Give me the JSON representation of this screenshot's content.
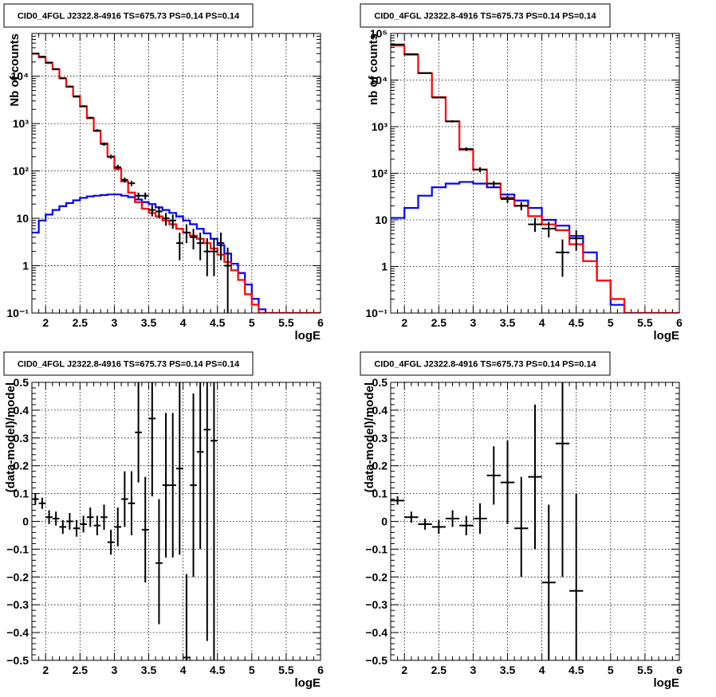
{
  "colors": {
    "model": "#ff0000",
    "component": "#0000ff",
    "data": "#000000"
  },
  "chart_data": [
    {
      "type": "line",
      "title": "CID0_4FGL J2322.8-4916 TS=675.73 PS=0.14 PS=0.14",
      "xlabel": "logE",
      "ylabel": "Nb of counts",
      "xlim": [
        1.8,
        6.0
      ],
      "ylim": [
        0.1,
        80000
      ],
      "yscale": "log",
      "grid": true,
      "xticks": [
        2,
        2.5,
        3,
        3.5,
        4,
        4.5,
        5,
        5.5,
        6
      ],
      "xtick_labels": [
        "2",
        "2.5",
        "3",
        "3.5",
        "4",
        "4.5",
        "5",
        "5.5",
        "6"
      ],
      "yticks": [
        0.1,
        1,
        10,
        100,
        1000,
        10000
      ],
      "ytick_labels": [
        "10⁻¹",
        "1",
        "10",
        "10²",
        "10³",
        "10⁴"
      ],
      "bin_edges": [
        1.8,
        1.9,
        2.0,
        2.1,
        2.2,
        2.3,
        2.4,
        2.5,
        2.6,
        2.7,
        2.8,
        2.9,
        3.0,
        3.1,
        3.2,
        3.3,
        3.4,
        3.5,
        3.6,
        3.7,
        3.8,
        3.9,
        4.0,
        4.1,
        4.2,
        4.3,
        4.4,
        4.5,
        4.6,
        4.7,
        4.8,
        4.9,
        5.0,
        5.1,
        5.2,
        5.3,
        5.4,
        5.5,
        5.6,
        5.7,
        5.8,
        5.9,
        6.0
      ],
      "series": [
        {
          "values": [
            30000,
            25000,
            19000,
            14000,
            9000,
            6000,
            3800,
            2300,
            1300,
            700,
            380,
            200,
            110,
            60,
            35,
            22,
            16,
            13,
            11,
            9,
            7.5,
            6,
            5,
            4.3,
            3.7,
            3,
            2.3,
            1.7,
            1.2,
            0.8,
            0.5,
            0.25,
            0.15,
            0.1,
            0.1,
            0.1,
            0.1,
            0.1,
            0.1,
            0.1,
            0.1,
            0.1
          ]
        },
        {
          "values": [
            5,
            9,
            12,
            15,
            18,
            21,
            24,
            27,
            29,
            30,
            31,
            32,
            32,
            30,
            28,
            25,
            22,
            20,
            17,
            15,
            13,
            11,
            9,
            7.5,
            6,
            4.8,
            3.7,
            2.7,
            1.8,
            1.1,
            0.7,
            0.4,
            0.2,
            0.12,
            0.1,
            0.1,
            0.1,
            0.1,
            0.1,
            0.1,
            0.1,
            0.1
          ]
        }
      ],
      "points": [
        {
          "x": 1.85,
          "y": 30000,
          "ylo": 29500,
          "yhi": 30500
        },
        {
          "x": 1.95,
          "y": 26000,
          "ylo": 25500,
          "yhi": 26500
        },
        {
          "x": 2.05,
          "y": 19500,
          "ylo": 19000,
          "yhi": 20000
        },
        {
          "x": 2.15,
          "y": 14200,
          "ylo": 13800,
          "yhi": 14600
        },
        {
          "x": 2.25,
          "y": 9100,
          "ylo": 8800,
          "yhi": 9400
        },
        {
          "x": 2.35,
          "y": 6050,
          "ylo": 5800,
          "yhi": 6300
        },
        {
          "x": 2.45,
          "y": 3700,
          "ylo": 3550,
          "yhi": 3850
        },
        {
          "x": 2.55,
          "y": 2330,
          "ylo": 2230,
          "yhi": 2430
        },
        {
          "x": 2.65,
          "y": 1330,
          "ylo": 1260,
          "yhi": 1400
        },
        {
          "x": 2.75,
          "y": 715,
          "ylo": 670,
          "yhi": 760
        },
        {
          "x": 2.85,
          "y": 370,
          "ylo": 340,
          "yhi": 400
        },
        {
          "x": 2.95,
          "y": 200,
          "ylo": 180,
          "yhi": 220
        },
        {
          "x": 3.05,
          "y": 120,
          "ylo": 105,
          "yhi": 135
        },
        {
          "x": 3.15,
          "y": 65,
          "ylo": 57,
          "yhi": 73
        },
        {
          "x": 3.25,
          "y": 55,
          "ylo": 48,
          "yhi": 62
        },
        {
          "x": 3.35,
          "y": 30,
          "ylo": 25,
          "yhi": 35
        },
        {
          "x": 3.45,
          "y": 30,
          "ylo": 25,
          "yhi": 35
        },
        {
          "x": 3.55,
          "y": 15,
          "ylo": 11,
          "yhi": 19
        },
        {
          "x": 3.65,
          "y": 14,
          "ylo": 10,
          "yhi": 18
        },
        {
          "x": 3.75,
          "y": 10,
          "ylo": 7,
          "yhi": 13
        },
        {
          "x": 3.85,
          "y": 9,
          "ylo": 6,
          "yhi": 12
        },
        {
          "x": 3.95,
          "y": 3,
          "ylo": 1.3,
          "yhi": 5
        },
        {
          "x": 4.05,
          "y": 5,
          "ylo": 3,
          "yhi": 7.5
        },
        {
          "x": 4.15,
          "y": 4,
          "ylo": 2.2,
          "yhi": 6
        },
        {
          "x": 4.25,
          "y": 3,
          "ylo": 1.3,
          "yhi": 5
        },
        {
          "x": 4.35,
          "y": 2,
          "ylo": 0.6,
          "yhi": 3.8
        },
        {
          "x": 4.45,
          "y": 2,
          "ylo": 0.6,
          "yhi": 3.8
        },
        {
          "x": 4.55,
          "y": 3,
          "ylo": 1.3,
          "yhi": 5
        },
        {
          "x": 4.65,
          "y": 1,
          "ylo": 0.1,
          "yhi": 2.4
        }
      ]
    },
    {
      "type": "line",
      "title": "CID0_4FGL J2322.8-4916 TS=675.73 PS=0.14 PS=0.14",
      "xlabel": "logE",
      "ylabel": "nb of counts",
      "xlim": [
        1.8,
        6.0
      ],
      "ylim": [
        0.1,
        100000
      ],
      "yscale": "log",
      "grid": true,
      "xticks": [
        2,
        2.5,
        3,
        3.5,
        4,
        4.5,
        5,
        5.5,
        6
      ],
      "xtick_labels": [
        "2",
        "2.5",
        "3",
        "3.5",
        "4",
        "4.5",
        "5",
        "5.5",
        "6"
      ],
      "yticks": [
        0.1,
        1,
        10,
        100,
        1000,
        10000,
        100000
      ],
      "ytick_labels": [
        "10⁻¹",
        "1",
        "10",
        "10²",
        "10³",
        "10⁴",
        "10⁵"
      ],
      "bin_edges": [
        1.8,
        2.0,
        2.2,
        2.4,
        2.6,
        2.8,
        3.0,
        3.2,
        3.4,
        3.6,
        3.8,
        4.0,
        4.2,
        4.4,
        4.6,
        4.8,
        5.0,
        5.2,
        5.4,
        5.6,
        5.8,
        6.0
      ],
      "series": [
        {
          "values": [
            55000,
            35000,
            14000,
            4300,
            1300,
            320,
            120,
            60,
            30,
            20,
            12,
            8,
            6,
            3,
            1.3,
            0.5,
            0.2,
            0.1,
            0.1,
            0.1,
            0.1
          ]
        },
        {
          "values": [
            11,
            18,
            33,
            50,
            60,
            65,
            60,
            50,
            35,
            26,
            18,
            10,
            7.5,
            4.5,
            2,
            0.5,
            0.15,
            0.1,
            0.1,
            0.1,
            0.1
          ]
        }
      ],
      "points": [
        {
          "x": 1.9,
          "y": 58000,
          "ylo": 57000,
          "yhi": 59000
        },
        {
          "x": 2.1,
          "y": 36000,
          "ylo": 35500,
          "yhi": 36500
        },
        {
          "x": 2.3,
          "y": 14200,
          "ylo": 13900,
          "yhi": 14500
        },
        {
          "x": 2.5,
          "y": 4200,
          "ylo": 4050,
          "yhi": 4350
        },
        {
          "x": 2.7,
          "y": 1300,
          "ylo": 1230,
          "yhi": 1370
        },
        {
          "x": 2.9,
          "y": 330,
          "ylo": 300,
          "yhi": 360
        },
        {
          "x": 3.1,
          "y": 120,
          "ylo": 105,
          "yhi": 135
        },
        {
          "x": 3.3,
          "y": 60,
          "ylo": 52,
          "yhi": 68
        },
        {
          "x": 3.5,
          "y": 28,
          "ylo": 23,
          "yhi": 33
        },
        {
          "x": 3.7,
          "y": 20,
          "ylo": 16,
          "yhi": 24
        },
        {
          "x": 3.9,
          "y": 8,
          "ylo": 5.5,
          "yhi": 11
        },
        {
          "x": 4.1,
          "y": 6.5,
          "ylo": 4.2,
          "yhi": 9
        },
        {
          "x": 4.3,
          "y": 2,
          "ylo": 0.6,
          "yhi": 3.8
        },
        {
          "x": 4.5,
          "y": 4,
          "ylo": 2.2,
          "yhi": 6
        }
      ]
    },
    {
      "type": "scatter",
      "title": "CID0_4FGL J2322.8-4916 TS=675.73 PS=0.14 PS=0.14",
      "xlabel": "logE",
      "ylabel": "(data-model)/model",
      "xlim": [
        1.8,
        6.0
      ],
      "ylim": [
        -0.5,
        0.5
      ],
      "grid": true,
      "xticks": [
        2,
        2.5,
        3,
        3.5,
        4,
        4.5,
        5,
        5.5,
        6
      ],
      "xtick_labels": [
        "2",
        "2.5",
        "3",
        "3.5",
        "4",
        "4.5",
        "5",
        "5.5",
        "6"
      ],
      "yticks": [
        -0.5,
        -0.4,
        -0.3,
        -0.2,
        -0.1,
        0,
        0.1,
        0.2,
        0.3,
        0.4,
        0.5
      ],
      "ytick_labels": [
        "−0.5",
        "−0.4",
        "−0.3",
        "−0.2",
        "−0.1",
        "0",
        "0.1",
        "0.2",
        "0.3",
        "0.4",
        "0.5"
      ],
      "xerr": 0.05,
      "points": [
        {
          "x": 1.85,
          "y": 0.08,
          "ylo": 0.06,
          "yhi": 0.1
        },
        {
          "x": 1.95,
          "y": 0.065,
          "ylo": 0.045,
          "yhi": 0.085
        },
        {
          "x": 2.05,
          "y": 0.015,
          "ylo": -0.01,
          "yhi": 0.04
        },
        {
          "x": 2.15,
          "y": 0.01,
          "ylo": -0.015,
          "yhi": 0.035
        },
        {
          "x": 2.25,
          "y": -0.02,
          "ylo": -0.045,
          "yhi": 0.005
        },
        {
          "x": 2.35,
          "y": 0.0,
          "ylo": -0.03,
          "yhi": 0.03
        },
        {
          "x": 2.45,
          "y": -0.025,
          "ylo": -0.055,
          "yhi": 0.005
        },
        {
          "x": 2.55,
          "y": -0.01,
          "ylo": -0.04,
          "yhi": 0.02
        },
        {
          "x": 2.65,
          "y": 0.015,
          "ylo": -0.02,
          "yhi": 0.05
        },
        {
          "x": 2.75,
          "y": -0.015,
          "ylo": -0.05,
          "yhi": 0.02
        },
        {
          "x": 2.85,
          "y": 0.015,
          "ylo": -0.03,
          "yhi": 0.06
        },
        {
          "x": 2.95,
          "y": -0.075,
          "ylo": -0.12,
          "yhi": -0.03
        },
        {
          "x": 3.05,
          "y": -0.02,
          "ylo": -0.09,
          "yhi": 0.05
        },
        {
          "x": 3.15,
          "y": 0.08,
          "ylo": -0.02,
          "yhi": 0.18
        },
        {
          "x": 3.25,
          "y": 0.065,
          "ylo": -0.05,
          "yhi": 0.18
        },
        {
          "x": 3.35,
          "y": 0.32,
          "ylo": 0.14,
          "yhi": 0.5
        },
        {
          "x": 3.45,
          "y": -0.03,
          "ylo": -0.22,
          "yhi": 0.16
        },
        {
          "x": 3.55,
          "y": 0.37,
          "ylo": 0.09,
          "yhi": 0.5
        },
        {
          "x": 3.65,
          "y": -0.15,
          "ylo": -0.37,
          "yhi": 0.08
        },
        {
          "x": 3.75,
          "y": 0.13,
          "ylo": -0.13,
          "yhi": 0.39
        },
        {
          "x": 3.85,
          "y": 0.13,
          "ylo": -0.13,
          "yhi": 0.39
        },
        {
          "x": 3.95,
          "y": 0.19,
          "ylo": -0.12,
          "yhi": 0.5
        },
        {
          "x": 4.05,
          "y": -0.49,
          "ylo": -0.5,
          "yhi": -0.19
        },
        {
          "x": 4.15,
          "y": 0.13,
          "ylo": -0.2,
          "yhi": 0.46
        },
        {
          "x": 4.25,
          "y": 0.25,
          "ylo": -0.1,
          "yhi": 0.5
        },
        {
          "x": 4.35,
          "y": 0.33,
          "ylo": -0.43,
          "yhi": 0.5
        },
        {
          "x": 4.45,
          "y": 0.29,
          "ylo": -0.5,
          "yhi": 0.5
        }
      ]
    },
    {
      "type": "scatter",
      "title": "CID0_4FGL J2322.8-4916 TS=675.73 PS=0.14 PS=0.14",
      "xlabel": "logE",
      "ylabel": "(data-model)/model",
      "xlim": [
        1.8,
        6.0
      ],
      "ylim": [
        -0.5,
        0.5
      ],
      "grid": true,
      "xticks": [
        2,
        2.5,
        3,
        3.5,
        4,
        4.5,
        5,
        5.5,
        6
      ],
      "xtick_labels": [
        "2",
        "2.5",
        "3",
        "3.5",
        "4",
        "4.5",
        "5",
        "5.5",
        "6"
      ],
      "yticks": [
        -0.5,
        -0.4,
        -0.3,
        -0.2,
        -0.1,
        0,
        0.1,
        0.2,
        0.3,
        0.4,
        0.5
      ],
      "ytick_labels": [
        "−0.5",
        "−0.4",
        "−0.3",
        "−0.2",
        "−0.1",
        "0",
        "0.1",
        "0.2",
        "0.3",
        "0.4",
        "0.5"
      ],
      "xerr": 0.1,
      "points": [
        {
          "x": 1.9,
          "y": 0.075,
          "ylo": 0.06,
          "yhi": 0.09
        },
        {
          "x": 2.1,
          "y": 0.015,
          "ylo": -0.005,
          "yhi": 0.035
        },
        {
          "x": 2.3,
          "y": -0.01,
          "ylo": -0.03,
          "yhi": 0.01
        },
        {
          "x": 2.5,
          "y": -0.02,
          "ylo": -0.045,
          "yhi": 0.005
        },
        {
          "x": 2.7,
          "y": 0.01,
          "ylo": -0.02,
          "yhi": 0.04
        },
        {
          "x": 2.9,
          "y": -0.015,
          "ylo": -0.05,
          "yhi": 0.02
        },
        {
          "x": 3.1,
          "y": 0.01,
          "ylo": -0.045,
          "yhi": 0.065
        },
        {
          "x": 3.3,
          "y": 0.165,
          "ylo": 0.06,
          "yhi": 0.27
        },
        {
          "x": 3.5,
          "y": 0.14,
          "ylo": -0.01,
          "yhi": 0.29
        },
        {
          "x": 3.7,
          "y": -0.025,
          "ylo": -0.2,
          "yhi": 0.16
        },
        {
          "x": 3.9,
          "y": 0.16,
          "ylo": -0.1,
          "yhi": 0.42
        },
        {
          "x": 4.1,
          "y": -0.22,
          "ylo": -0.5,
          "yhi": 0.06
        },
        {
          "x": 4.3,
          "y": 0.28,
          "ylo": -0.2,
          "yhi": 0.5
        },
        {
          "x": 4.5,
          "y": -0.25,
          "ylo": -0.5,
          "yhi": 0.1
        }
      ]
    }
  ]
}
